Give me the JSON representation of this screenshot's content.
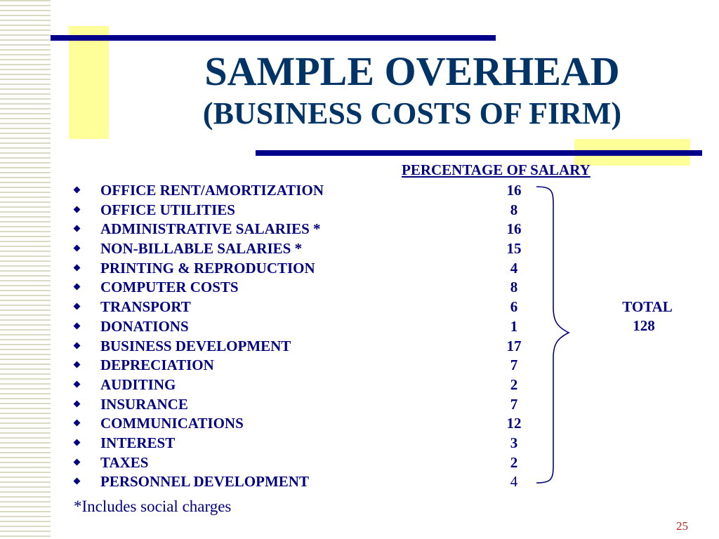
{
  "slide": {
    "title": "SAMPLE OVERHEAD",
    "subtitle": "(BUSINESS COSTS OF FIRM)",
    "column_header": "PERCENTAGE OF SALARY",
    "items": [
      {
        "label": "OFFICE RENT/AMORTIZATION",
        "value": "16"
      },
      {
        "label": "OFFICE UTILITIES",
        "value": "8"
      },
      {
        "label": "ADMINISTRATIVE SALARIES *",
        "value": "16"
      },
      {
        "label": "NON-BILLABLE SALARIES *",
        "value": "15"
      },
      {
        "label": "PRINTING & REPRODUCTION",
        "value": "4"
      },
      {
        "label": "COMPUTER COSTS",
        "value": "8"
      },
      {
        "label": "TRANSPORT",
        "value": "6"
      },
      {
        "label": "DONATIONS",
        "value": "1"
      },
      {
        "label": "BUSINESS DEVELOPMENT",
        "value": "17"
      },
      {
        "label": "DEPRECIATION",
        "value": "7"
      },
      {
        "label": "AUDITING",
        "value": "2"
      },
      {
        "label": "INSURANCE",
        "value": "7"
      },
      {
        "label": "COMMUNICATIONS",
        "value": "12"
      },
      {
        "label": "INTEREST",
        "value": "3"
      },
      {
        "label": "TAXES",
        "value": "2"
      },
      {
        "label": "PERSONNEL DEVELOPMENT",
        "value": "4"
      }
    ],
    "total_label": "TOTAL",
    "total_value": "128",
    "footnote": "*Includes social charges",
    "page_number": "25"
  },
  "colors": {
    "title": "#003366",
    "text": "#000080",
    "accent_yellow": "#ffff99",
    "rule_blue": "#00008b",
    "page_number": "#b22222"
  }
}
